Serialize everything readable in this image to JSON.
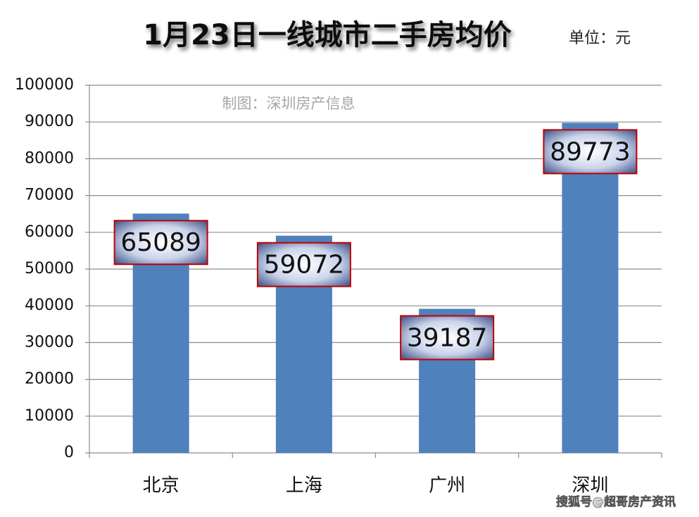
{
  "chart_data": {
    "type": "bar",
    "title": "1月23日一线城市二手房均价",
    "unit_label": "单位：元",
    "annotation": "制图：深圳房产信息",
    "watermark": "搜狐号@超哥房产资讯",
    "categories": [
      "北京",
      "上海",
      "广州",
      "深圳"
    ],
    "values": [
      65089,
      59072,
      39187,
      89773
    ],
    "color": "#4f81bd",
    "ylim": [
      0,
      100000
    ],
    "yticks": [
      0,
      10000,
      20000,
      30000,
      40000,
      50000,
      60000,
      70000,
      80000,
      90000,
      100000
    ],
    "grid": true
  }
}
